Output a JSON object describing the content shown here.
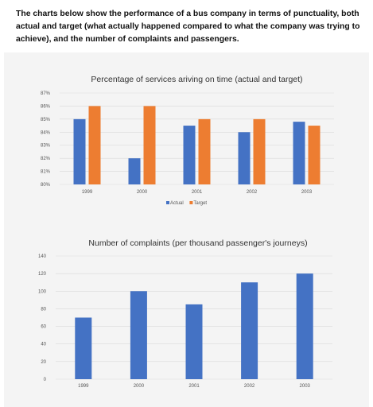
{
  "intro_text": "The charts below show the performance of a bus company in terms of punctuality, both actual and target (what actually happened compared to what the company was trying to achieve), and the number of complaints and passengers.",
  "colors": {
    "actual": "#4472c4",
    "target": "#ed7d31",
    "grid": "#d9d9d9",
    "panel": "#f4f4f4"
  },
  "chart_data": [
    {
      "type": "bar",
      "title": "Percentage of services ariving on time (actual and target)",
      "categories": [
        "1999",
        "2000",
        "2001",
        "2002",
        "2003"
      ],
      "series": [
        {
          "name": "Actual",
          "values": [
            85,
            82,
            84.5,
            84,
            84.8
          ]
        },
        {
          "name": "Target",
          "values": [
            86,
            86,
            85,
            85,
            84.5
          ]
        }
      ],
      "ylim": [
        80,
        87
      ],
      "yticks": [
        "80%",
        "81%",
        "82%",
        "83%",
        "84%",
        "85%",
        "86%",
        "87%"
      ],
      "legend": "bottom",
      "grid": true
    },
    {
      "type": "bar",
      "title": "Number of complaints (per thousand passenger's journeys)",
      "categories": [
        "1999",
        "2000",
        "2001",
        "2002",
        "2003"
      ],
      "values": [
        70,
        100,
        85,
        110,
        120
      ],
      "ylim": [
        0,
        140
      ],
      "yticks": [
        "0",
        "20",
        "40",
        "60",
        "80",
        "100",
        "120",
        "140"
      ],
      "grid": true
    }
  ]
}
